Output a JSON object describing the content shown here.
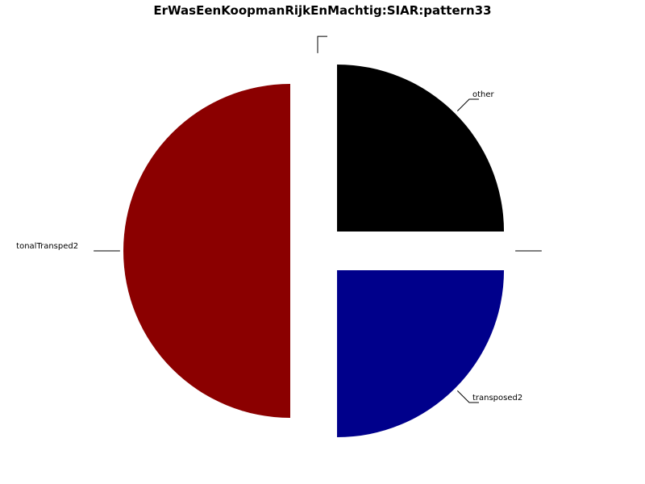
{
  "chart_data": {
    "type": "pie",
    "title": "ErWasEenKoopmanRijkEnMachtig:SIAR:pattern33",
    "exploded": true,
    "start_angle_deg": 90,
    "direction": "counterclockwise",
    "slices": [
      {
        "label": "",
        "value": 0,
        "color": "#ffffff"
      },
      {
        "label": "tonalTransped2",
        "value": 50,
        "color": "#8b0000"
      },
      {
        "label": "transposed2",
        "value": 25,
        "color": "#00008b"
      },
      {
        "label": "",
        "value": 0,
        "color": "#ffffff"
      },
      {
        "label": "other",
        "value": 25,
        "color": "#000000"
      }
    ]
  }
}
